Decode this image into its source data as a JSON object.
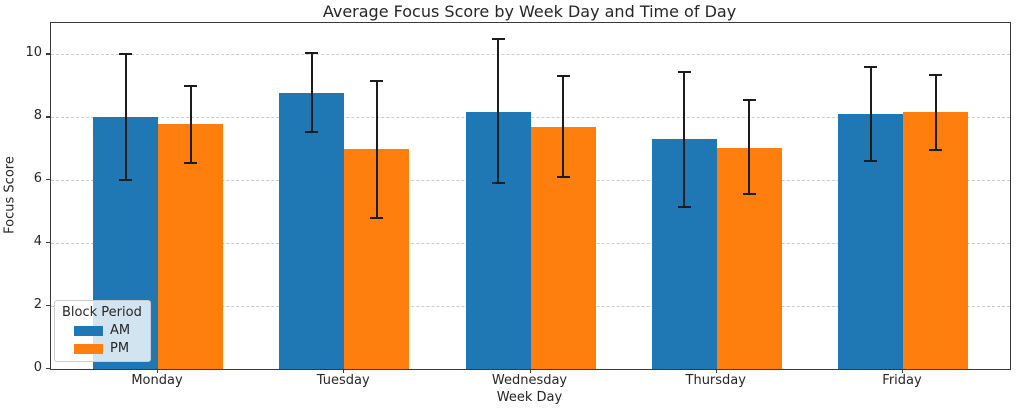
{
  "chart_data": {
    "type": "bar",
    "title": "Average Focus Score by Week Day and Time of Day",
    "xlabel": "Week Day",
    "ylabel": "Focus Score",
    "categories": [
      "Monday",
      "Tuesday",
      "Wednesday",
      "Thursday",
      "Friday"
    ],
    "series": [
      {
        "name": "AM",
        "color": "#1f77b4",
        "values": [
          8.0,
          8.78,
          8.18,
          7.3,
          8.1
        ],
        "err_low": [
          6.0,
          7.55,
          5.9,
          5.15,
          6.6
        ],
        "err_high": [
          10.0,
          10.05,
          10.5,
          9.45,
          9.6
        ]
      },
      {
        "name": "PM",
        "color": "#ff7f0e",
        "values": [
          7.78,
          6.98,
          7.68,
          7.03,
          8.18
        ],
        "err_low": [
          6.55,
          4.8,
          6.1,
          5.55,
          6.95
        ],
        "err_high": [
          9.0,
          9.15,
          9.3,
          8.55,
          9.35
        ]
      }
    ],
    "ylim": [
      0,
      11
    ],
    "yticks": [
      0,
      2,
      4,
      6,
      8,
      10
    ],
    "grid": "horizontal-dashed",
    "error_bars": true,
    "legend": {
      "title": "Block Period",
      "position": "lower-left"
    },
    "colors": {
      "grid": "#cccccc",
      "axis": "#3a3a3a",
      "error_bar": "#1c1c1c"
    }
  }
}
